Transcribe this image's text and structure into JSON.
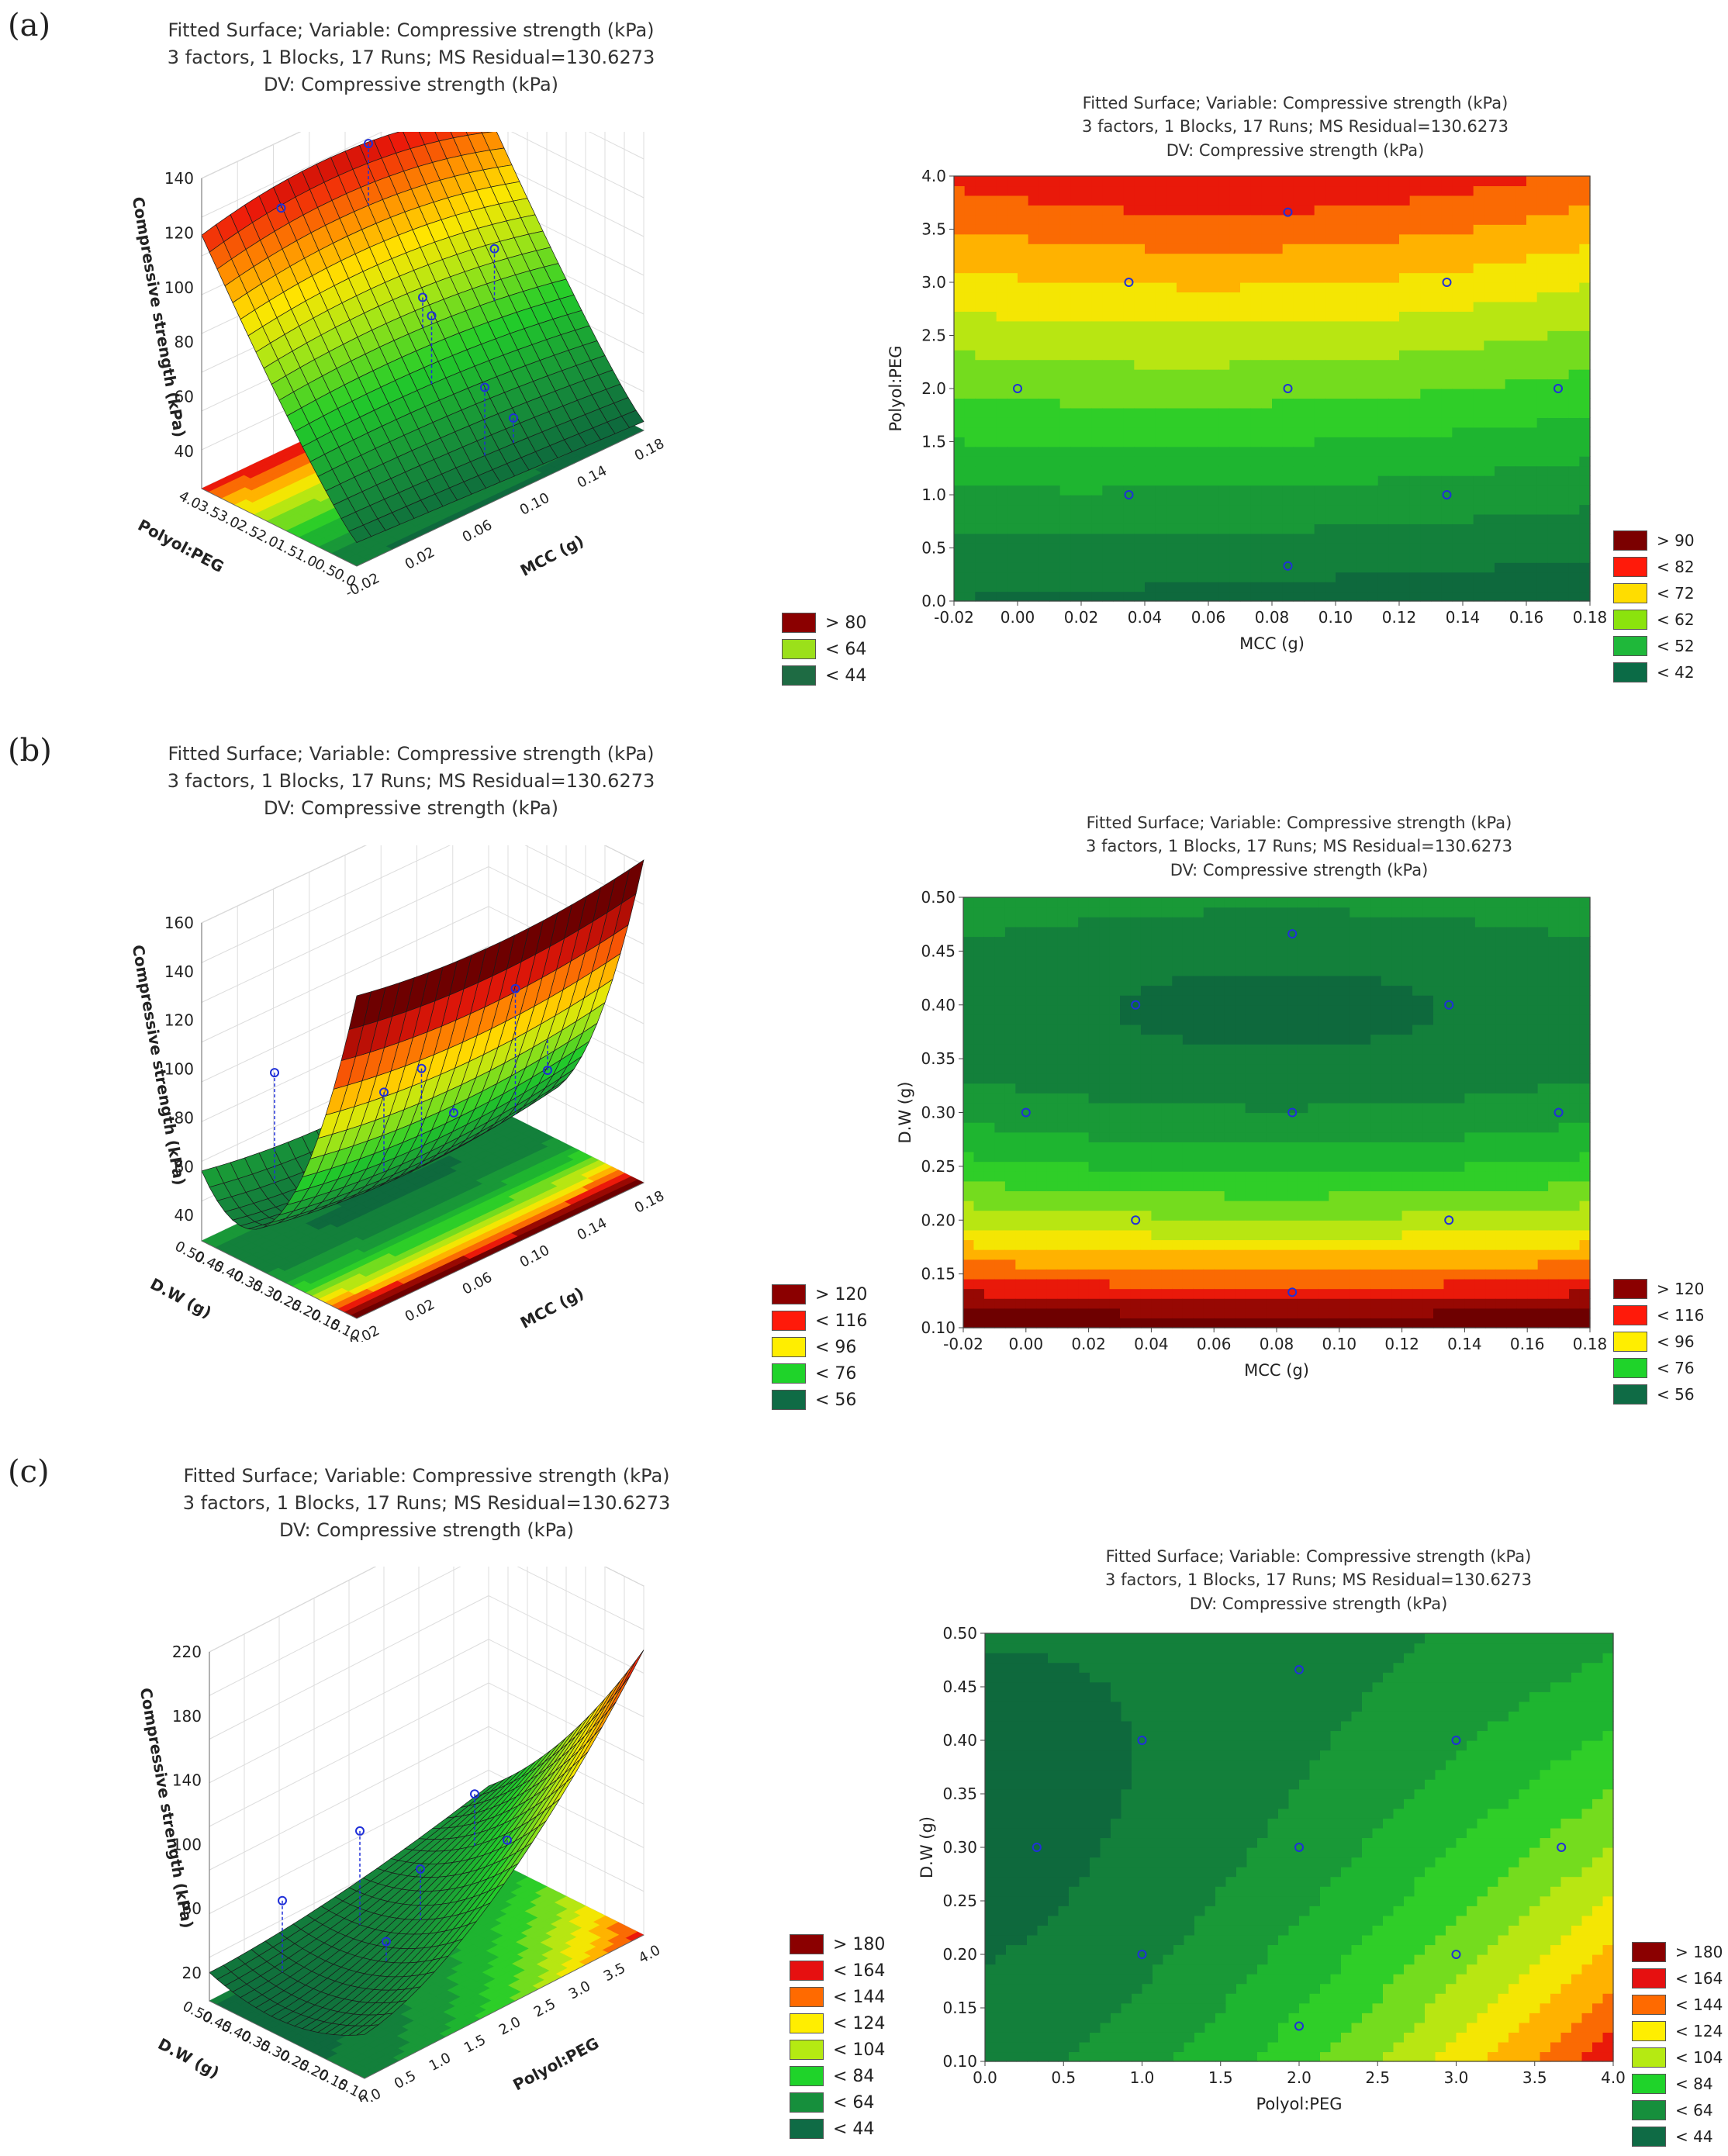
{
  "panels": [
    {
      "label": "(a)",
      "title": [
        "Fitted Surface; Variable: Compressive strength (kPa)",
        "3 factors, 1 Blocks, 17 Runs; MS Residual=130.6273",
        "DV: Compressive strength (kPa)"
      ],
      "legend3d": [
        {
          "label": "> 80",
          "color": "#8b0000"
        },
        {
          "label": "< 64",
          "color": "#9be01a"
        },
        {
          "label": "< 44",
          "color": "#1e6b43"
        }
      ],
      "legend2d": [
        {
          "label": "> 90",
          "color": "#7b0000"
        },
        {
          "label": "< 82",
          "color": "#ff1a0a"
        },
        {
          "label": "< 72",
          "color": "#ffdd00"
        },
        {
          "label": "< 62",
          "color": "#8be30d"
        },
        {
          "label": "< 52",
          "color": "#1fb83a"
        },
        {
          "label": "< 42",
          "color": "#0b6b46"
        }
      ]
    },
    {
      "label": "(b)",
      "title": [
        "Fitted Surface; Variable: Compressive strength (kPa)",
        "3 factors, 1 Blocks, 17 Runs; MS Residual=130.6273",
        "DV: Compressive strength (kPa)"
      ],
      "legend3d": [
        {
          "label": "> 120",
          "color": "#8b0000"
        },
        {
          "label": "< 116",
          "color": "#ff1a0a"
        },
        {
          "label": "< 96",
          "color": "#ffee00"
        },
        {
          "label": "< 76",
          "color": "#1fd32a"
        },
        {
          "label": "< 56",
          "color": "#0f6b45"
        }
      ],
      "legend2d": [
        {
          "label": "> 120",
          "color": "#8b0000"
        },
        {
          "label": "< 116",
          "color": "#ff1a0a"
        },
        {
          "label": "< 96",
          "color": "#ffee00"
        },
        {
          "label": "< 76",
          "color": "#1fd32a"
        },
        {
          "label": "< 56",
          "color": "#0f6b45"
        }
      ]
    },
    {
      "label": "(c)",
      "title": [
        "Fitted Surface; Variable: Compressive strength (kPa)",
        "3 factors, 1 Blocks, 17 Runs; MS Residual=130.6273",
        "DV: Compressive strength (kPa)"
      ],
      "legend3d": [
        {
          "label": "> 180",
          "color": "#8b0000"
        },
        {
          "label": "< 164",
          "color": "#e61010"
        },
        {
          "label": "< 144",
          "color": "#ff6a00"
        },
        {
          "label": "< 124",
          "color": "#ffee00"
        },
        {
          "label": "< 104",
          "color": "#b5ea12"
        },
        {
          "label": "< 84",
          "color": "#1fd32a"
        },
        {
          "label": "< 64",
          "color": "#168f3c"
        },
        {
          "label": "< 44",
          "color": "#0f6b45"
        }
      ],
      "legend2d": [
        {
          "label": "> 180",
          "color": "#8b0000"
        },
        {
          "label": "< 164",
          "color": "#e61010"
        },
        {
          "label": "< 144",
          "color": "#ff6a00"
        },
        {
          "label": "< 124",
          "color": "#ffee00"
        },
        {
          "label": "< 104",
          "color": "#b5ea12"
        },
        {
          "label": "< 84",
          "color": "#1fd32a"
        },
        {
          "label": "< 64",
          "color": "#168f3c"
        },
        {
          "label": "< 44",
          "color": "#0f6b45"
        }
      ]
    }
  ],
  "chart_data": [
    {
      "type": "surface3d",
      "panel": "(a)",
      "zlabel": "Compressive strength (kPa)",
      "xlabel": "MCC (g)",
      "ylabel": "Polyol:PEG",
      "x_ticks": [
        "-0.02",
        "0.02",
        "0.06",
        "0.10",
        "0.14",
        "0.18"
      ],
      "y_ticks": [
        "0.0",
        "0.5",
        "1.0",
        "1.5",
        "2.0",
        "2.5",
        "3.0",
        "3.5",
        "4.0"
      ],
      "z_ticks": [
        "40",
        "60",
        "80",
        "100",
        "120",
        "140"
      ],
      "xlim": [
        -0.02,
        0.18
      ],
      "ylim": [
        0.0,
        4.0
      ],
      "zlim": [
        30,
        140
      ]
    },
    {
      "type": "contour",
      "panel": "(a)",
      "xlabel": "MCC (g)",
      "ylabel": "Polyol:PEG",
      "x_ticks": [
        "-0.02",
        "0.00",
        "0.02",
        "0.04",
        "0.06",
        "0.08",
        "0.10",
        "0.12",
        "0.14",
        "0.16",
        "0.18"
      ],
      "y_ticks": [
        "0.0",
        "0.5",
        "1.0",
        "1.5",
        "2.0",
        "2.5",
        "3.0",
        "3.5",
        "4.0"
      ],
      "xlim": [
        -0.02,
        0.18
      ],
      "ylim": [
        0.0,
        4.0
      ],
      "points": [
        [
          0.035,
          3.0
        ],
        [
          0.085,
          3.66
        ],
        [
          0.135,
          3.0
        ],
        [
          0.0,
          2.0
        ],
        [
          0.085,
          2.0
        ],
        [
          0.17,
          2.0
        ],
        [
          0.035,
          1.0
        ],
        [
          0.135,
          1.0
        ],
        [
          0.085,
          0.33
        ]
      ]
    },
    {
      "type": "surface3d",
      "panel": "(b)",
      "zlabel": "Compressive strength (kPa)",
      "xlabel": "MCC (g)",
      "ylabel": "D.W (g)",
      "x_ticks": [
        "-0.02",
        "0.02",
        "0.06",
        "0.10",
        "0.14",
        "0.18"
      ],
      "y_ticks": [
        "0.10",
        "0.15",
        "0.20",
        "0.25",
        "0.30",
        "0.35",
        "0.40",
        "0.45",
        "0.50"
      ],
      "z_ticks": [
        "40",
        "60",
        "80",
        "100",
        "120",
        "140",
        "160"
      ],
      "xlim": [
        -0.02,
        0.18
      ],
      "ylim": [
        0.1,
        0.5
      ],
      "zlim": [
        30,
        160
      ]
    },
    {
      "type": "contour",
      "panel": "(b)",
      "xlabel": "MCC (g)",
      "ylabel": "D.W (g)",
      "x_ticks": [
        "-0.02",
        "0.00",
        "0.02",
        "0.04",
        "0.06",
        "0.08",
        "0.10",
        "0.12",
        "0.14",
        "0.16",
        "0.18"
      ],
      "y_ticks": [
        "0.10",
        "0.15",
        "0.20",
        "0.25",
        "0.30",
        "0.35",
        "0.40",
        "0.45",
        "0.50"
      ],
      "xlim": [
        -0.02,
        0.18
      ],
      "ylim": [
        0.1,
        0.5
      ],
      "points": [
        [
          0.085,
          0.466
        ],
        [
          0.035,
          0.4
        ],
        [
          0.135,
          0.4
        ],
        [
          0.0,
          0.3
        ],
        [
          0.085,
          0.3
        ],
        [
          0.17,
          0.3
        ],
        [
          0.035,
          0.2
        ],
        [
          0.135,
          0.2
        ],
        [
          0.085,
          0.133
        ]
      ]
    },
    {
      "type": "surface3d",
      "panel": "(c)",
      "zlabel": "Compressive strength (kPa)",
      "xlabel": "Polyol:PEG",
      "ylabel": "D.W (g)",
      "x_ticks": [
        "0.0",
        "0.5",
        "1.0",
        "1.5",
        "2.0",
        "2.5",
        "3.0",
        "3.5",
        "4.0"
      ],
      "y_ticks": [
        "0.10",
        "0.15",
        "0.20",
        "0.25",
        "0.30",
        "0.35",
        "0.40",
        "0.45",
        "0.50"
      ],
      "z_ticks": [
        "20",
        "60",
        "100",
        "140",
        "180",
        "220"
      ],
      "xlim": [
        0.0,
        4.0
      ],
      "ylim": [
        0.1,
        0.5
      ],
      "zlim": [
        0,
        220
      ]
    },
    {
      "type": "contour",
      "panel": "(c)",
      "xlabel": "Polyol:PEG",
      "ylabel": "D.W (g)",
      "x_ticks": [
        "0.0",
        "0.5",
        "1.0",
        "1.5",
        "2.0",
        "2.5",
        "3.0",
        "3.5",
        "4.0"
      ],
      "y_ticks": [
        "0.10",
        "0.15",
        "0.20",
        "0.25",
        "0.30",
        "0.35",
        "0.40",
        "0.45",
        "0.50"
      ],
      "xlim": [
        0.0,
        4.0
      ],
      "ylim": [
        0.1,
        0.5
      ],
      "points": [
        [
          2.0,
          0.466
        ],
        [
          1.0,
          0.4
        ],
        [
          3.0,
          0.4
        ],
        [
          0.33,
          0.3
        ],
        [
          2.0,
          0.3
        ],
        [
          3.67,
          0.3
        ],
        [
          1.0,
          0.2
        ],
        [
          3.0,
          0.2
        ],
        [
          2.0,
          0.133
        ]
      ]
    }
  ]
}
